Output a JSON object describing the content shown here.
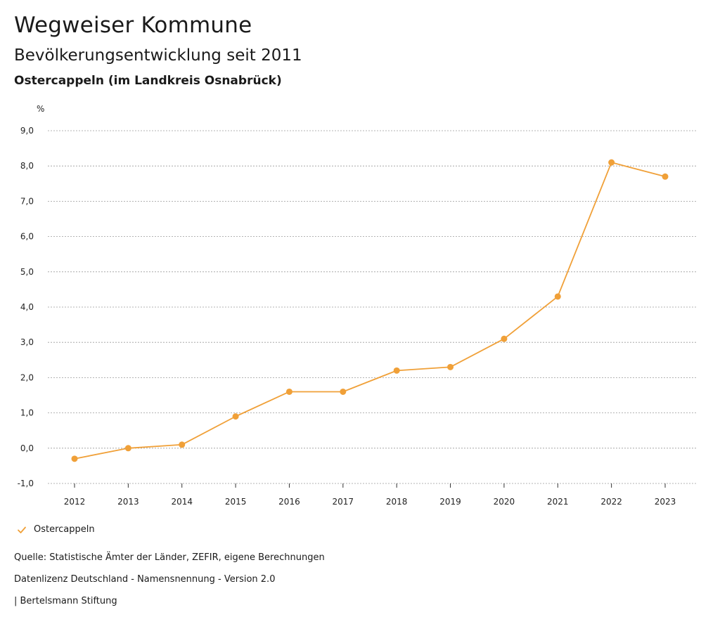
{
  "header": {
    "title": "Wegweiser Kommune",
    "subtitle": "Bevölkerungsentwicklung seit 2011",
    "region": "Ostercappeln (im Landkreis Osnabrück)"
  },
  "legend": {
    "label": "Ostercappeln"
  },
  "footer": {
    "source": "Quelle: Statistische Ämter der Länder, ZEFIR, eigene Berechnungen",
    "license": "Datenlizenz Deutschland - Namensnennung - Version 2.0",
    "publisher": "| Bertelsmann Stiftung"
  },
  "colors": {
    "series": "#f0a038",
    "grid": "#9a9a9a",
    "text": "#1a1a1a"
  },
  "chart_data": {
    "type": "line",
    "title": "Bevölkerungsentwicklung seit 2011",
    "ylabel": "%",
    "xlabel": "",
    "ylim": [
      -1.0,
      9.0
    ],
    "yticks": [
      -1.0,
      0.0,
      1.0,
      2.0,
      3.0,
      4.0,
      5.0,
      6.0,
      7.0,
      8.0,
      9.0
    ],
    "ytick_labels": [
      "-1,0",
      "0,0",
      "1,0",
      "2,0",
      "3,0",
      "4,0",
      "5,0",
      "6,0",
      "7,0",
      "8,0",
      "9,0"
    ],
    "categories": [
      "2012",
      "2013",
      "2014",
      "2015",
      "2016",
      "2017",
      "2018",
      "2019",
      "2020",
      "2021",
      "2022",
      "2023"
    ],
    "grid": true,
    "legend_position": "bottom-left",
    "series": [
      {
        "name": "Ostercappeln",
        "values": [
          -0.3,
          0.0,
          0.1,
          0.9,
          1.6,
          1.6,
          2.2,
          2.3,
          3.1,
          4.3,
          8.1,
          7.7
        ]
      }
    ]
  }
}
